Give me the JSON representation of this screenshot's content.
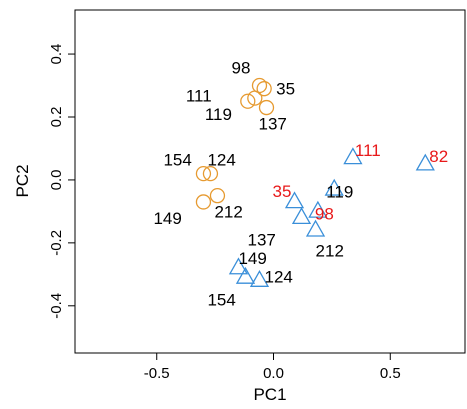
{
  "chart_data": {
    "type": "scatter",
    "xlabel": "PC1",
    "ylabel": "PC2",
    "xlim": [
      -0.85,
      0.82
    ],
    "ylim": [
      -0.55,
      0.54
    ],
    "xticks": [
      -0.5,
      0.0,
      0.5
    ],
    "yticks": [
      -0.4,
      -0.2,
      0.0,
      0.2,
      0.4
    ],
    "grid": false,
    "series": [
      {
        "marker": "circle",
        "color": "#e69a30",
        "points": [
          {
            "x": -0.06,
            "y": 0.3,
            "label": "98",
            "label_color": "#000000"
          },
          {
            "x": -0.04,
            "y": 0.29,
            "label": "35",
            "label_color": "#000000"
          },
          {
            "x": -0.11,
            "y": 0.25,
            "label": "111",
            "label_color": "#000000"
          },
          {
            "x": -0.08,
            "y": 0.26,
            "label": "119",
            "label_color": "#000000"
          },
          {
            "x": -0.03,
            "y": 0.23,
            "label": "137",
            "label_color": "#000000"
          },
          {
            "x": -0.3,
            "y": 0.02,
            "label": "154",
            "label_color": "#000000"
          },
          {
            "x": -0.27,
            "y": 0.02,
            "label": "124",
            "label_color": "#000000"
          },
          {
            "x": -0.3,
            "y": -0.07,
            "label": "149",
            "label_color": "#000000"
          },
          {
            "x": -0.24,
            "y": -0.05,
            "label": "212",
            "label_color": "#000000"
          }
        ]
      },
      {
        "marker": "triangle",
        "color": "#3a8fd9",
        "points": [
          {
            "x": 0.34,
            "y": 0.07,
            "label": "111",
            "label_color": "#e8191a"
          },
          {
            "x": 0.65,
            "y": 0.05,
            "label": "82",
            "label_color": "#e8191a"
          },
          {
            "x": 0.26,
            "y": -0.03,
            "label": "119",
            "label_color": "#000000"
          },
          {
            "x": 0.09,
            "y": -0.07,
            "label": "35",
            "label_color": "#e8191a"
          },
          {
            "x": 0.19,
            "y": -0.1,
            "label": "98",
            "label_color": "#e8191a"
          },
          {
            "x": 0.12,
            "y": -0.12,
            "label": "137",
            "label_color": "#000000"
          },
          {
            "x": 0.18,
            "y": -0.16,
            "label": "212",
            "label_color": "#000000"
          },
          {
            "x": -0.15,
            "y": -0.28,
            "label": "149",
            "label_color": "#000000"
          },
          {
            "x": -0.12,
            "y": -0.31,
            "label": "154",
            "label_color": "#000000"
          },
          {
            "x": -0.06,
            "y": -0.32,
            "label": "124",
            "label_color": "#000000"
          }
        ]
      }
    ]
  }
}
